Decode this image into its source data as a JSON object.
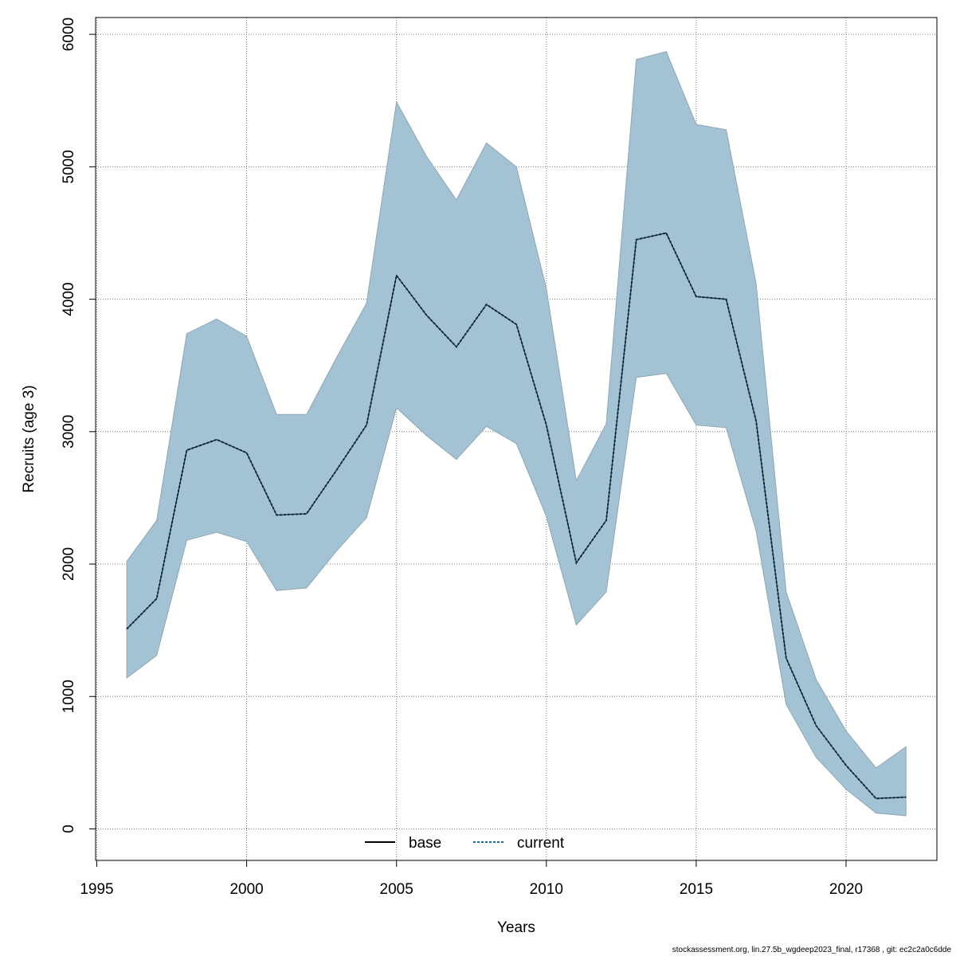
{
  "chart_data": {
    "type": "area",
    "xlabel": "Years",
    "ylabel": "Recruits (age 3)",
    "xlim": [
      1995,
      2022
    ],
    "ylim": [
      -200,
      6100
    ],
    "x_ticks": [
      1995,
      2000,
      2005,
      2010,
      2015,
      2020
    ],
    "y_ticks": [
      0,
      1000,
      2000,
      3000,
      4000,
      5000,
      6000
    ],
    "grid": true,
    "legend_position": "bottom-center",
    "x": [
      1996,
      1997,
      1998,
      1999,
      2000,
      2001,
      2002,
      2003,
      2004,
      2005,
      2006,
      2007,
      2008,
      2009,
      2010,
      2011,
      2012,
      2013,
      2014,
      2015,
      2016,
      2017,
      2018,
      2019,
      2020,
      2021,
      2022
    ],
    "band": {
      "color": "#a3c2d3",
      "upper": [
        2020,
        2330,
        3740,
        3850,
        3720,
        3130,
        3130,
        3560,
        3970,
        5490,
        5080,
        4750,
        5180,
        5000,
        4080,
        2630,
        3060,
        5810,
        5870,
        5320,
        5280,
        4120,
        1790,
        1130,
        740,
        460,
        620
      ],
      "lower": [
        1140,
        1310,
        2180,
        2240,
        2170,
        1800,
        1820,
        2100,
        2350,
        3180,
        2970,
        2790,
        3040,
        2910,
        2360,
        1540,
        1790,
        3410,
        3440,
        3050,
        3030,
        2250,
        940,
        540,
        300,
        120,
        100
      ]
    },
    "series": [
      {
        "name": "base",
        "color": "#000000",
        "style": "solid",
        "values": [
          1510,
          1740,
          2860,
          2940,
          2840,
          2370,
          2380,
          2710,
          3050,
          4180,
          3880,
          3640,
          3960,
          3810,
          3050,
          2010,
          2330,
          4450,
          4500,
          4020,
          4000,
          3080,
          1290,
          780,
          480,
          230,
          240
        ]
      },
      {
        "name": "current",
        "color": "#1a6fa3",
        "style": "dotted",
        "values": [
          1510,
          1740,
          2860,
          2940,
          2840,
          2370,
          2380,
          2710,
          3050,
          4180,
          3880,
          3640,
          3960,
          3810,
          3050,
          2010,
          2330,
          4450,
          4500,
          4020,
          4000,
          3080,
          1290,
          780,
          480,
          230,
          240
        ]
      }
    ]
  },
  "footer": {
    "text": "stockassessment.org, lin.27.5b_wgdeep2023_final, r17368 , git: ec2c2a0c6dde"
  }
}
